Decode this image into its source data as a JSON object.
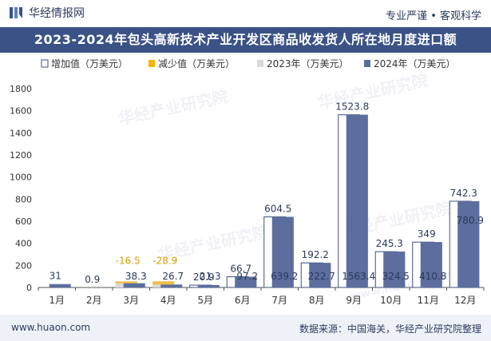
{
  "header": {
    "brand": "华经情报网",
    "tagline": "专业严谨 • 客观科学"
  },
  "title": "2023-2024年包头高新技术产业开发区商品收发货人所在地月度进口额",
  "footer": {
    "website": "www.huaon.com",
    "source": "数据来源：中国海关，华经产业研究院整理"
  },
  "watermark": {
    "cn": "华经产业研究院",
    "url": "www.huaon.com"
  },
  "colors": {
    "increase": "#ffffff",
    "increase_border": "#3a5286",
    "decrease": "#f5b400",
    "y2023": "#d9d9d9",
    "y2024": "#5b6e9e",
    "title_band": "#3a5286",
    "footer_band": "#eef2f8"
  },
  "chart_data": {
    "type": "bar",
    "title": "2023-2024年包头高新技术产业开发区商品收发货人所在地月度进口额",
    "xlabel": "",
    "ylabel": "",
    "ylim": [
      0,
      1800
    ],
    "yticks": [
      0,
      200,
      400,
      600,
      800,
      1000,
      1200,
      1400,
      1600,
      1800
    ],
    "grid": false,
    "legend_position": "top-left",
    "categories": [
      "1月",
      "2月",
      "3月",
      "4月",
      "5月",
      "6月",
      "7月",
      "8月",
      "9月",
      "10月",
      "11月",
      "12月"
    ],
    "legend": [
      {
        "key": "increase",
        "label": "增加值（万美元）"
      },
      {
        "key": "decrease",
        "label": "减少值（万美元）"
      },
      {
        "key": "y2023",
        "label": "2023年（万美元）"
      },
      {
        "key": "y2024",
        "label": "2024年（万美元）"
      }
    ],
    "series": [
      {
        "name": "2023年（万美元）",
        "key": "y2023",
        "values": [
          null,
          null,
          54.8,
          55.6,
          0.4,
          30.5,
          34.7,
          30.5,
          39.6,
          79.2,
          61.8,
          38.6
        ]
      },
      {
        "name": "2024年（万美元）",
        "key": "y2024",
        "values": [
          31,
          0.9,
          38.3,
          26.7,
          21.3,
          97.2,
          639.2,
          222.7,
          1563.4,
          324.5,
          410.8,
          780.9
        ]
      },
      {
        "name": "增加值（万美元）",
        "key": "increase",
        "values": [
          null,
          null,
          null,
          null,
          20.9,
          66.7,
          604.5,
          192.2,
          1523.8,
          245.3,
          349,
          742.3
        ]
      },
      {
        "name": "减少值（万美元）",
        "key": "decrease",
        "values": [
          null,
          null,
          -16.5,
          -28.9,
          null,
          null,
          null,
          null,
          null,
          null,
          null,
          null
        ]
      }
    ],
    "annotations": [
      {
        "category": "1月",
        "series": "y2024",
        "text": "31",
        "at": "top"
      },
      {
        "category": "2月",
        "series": "y2024",
        "text": "0.9",
        "at": "top"
      },
      {
        "category": "3月",
        "series": "decrease",
        "text": "-16.5",
        "at": "top"
      },
      {
        "category": "3月",
        "series": "y2024",
        "text": "38.3",
        "at": "inside"
      },
      {
        "category": "4月",
        "series": "decrease",
        "text": "-28.9",
        "at": "top"
      },
      {
        "category": "4月",
        "series": "y2024",
        "text": "26.7",
        "at": "inside"
      },
      {
        "category": "5月",
        "series": "increase",
        "text": "20.9",
        "at": "top"
      },
      {
        "category": "5月",
        "series": "y2024",
        "text": "21.3",
        "at": "inside"
      },
      {
        "category": "6月",
        "series": "increase",
        "text": "66.7",
        "at": "top"
      },
      {
        "category": "6月",
        "series": "y2024",
        "text": "97.2",
        "at": "inside"
      },
      {
        "category": "7月",
        "series": "increase",
        "text": "604.5",
        "at": "top"
      },
      {
        "category": "7月",
        "series": "y2024",
        "text": "639.2",
        "at": "inside"
      },
      {
        "category": "8月",
        "series": "increase",
        "text": "192.2",
        "at": "top"
      },
      {
        "category": "8月",
        "series": "y2024",
        "text": "222.7",
        "at": "inside"
      },
      {
        "category": "9月",
        "series": "increase",
        "text": "1523.8",
        "at": "top"
      },
      {
        "category": "9月",
        "series": "y2024",
        "text": "1563.4",
        "at": "inside"
      },
      {
        "category": "10月",
        "series": "increase",
        "text": "245.3",
        "at": "top"
      },
      {
        "category": "10月",
        "series": "y2024",
        "text": "324.5",
        "at": "inside"
      },
      {
        "category": "11月",
        "series": "increase",
        "text": "349",
        "at": "top"
      },
      {
        "category": "11月",
        "series": "y2024",
        "text": "410.8",
        "at": "inside"
      },
      {
        "category": "12月",
        "series": "increase",
        "text": "742.3",
        "at": "top"
      },
      {
        "category": "12月",
        "series": "y2024",
        "text": "780.9",
        "at": "inside"
      }
    ]
  }
}
